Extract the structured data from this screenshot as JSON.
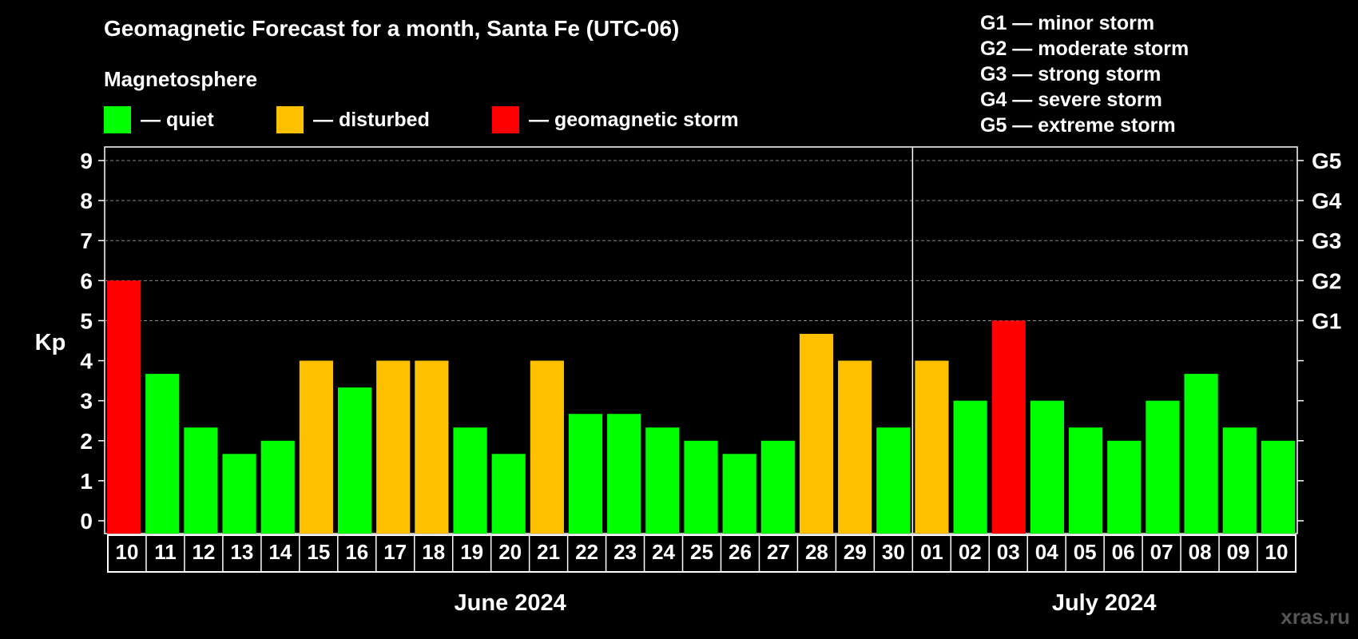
{
  "title": "Geomagnetic Forecast for a month, Santa Fe (UTC-06)",
  "subtitle": "Magnetosphere",
  "legend": [
    {
      "label": "— quiet",
      "color": "#00ff00"
    },
    {
      "label": "— disturbed",
      "color": "#ffc000"
    },
    {
      "label": "— geomagnetic storm",
      "color": "#ff0000"
    }
  ],
  "storm_legend": [
    "G1 — minor storm",
    "G2 — moderate storm",
    "G3 — strong storm",
    "G4 — severe storm",
    "G5 — extreme storm"
  ],
  "watermark": "xras.ru",
  "chart_data": {
    "type": "bar",
    "ylabel": "Kp",
    "ylim": [
      0,
      9
    ],
    "yticks": [
      "0",
      "1",
      "2",
      "3",
      "4",
      "5",
      "6",
      "7",
      "8",
      "9"
    ],
    "right_ticks": [
      {
        "kp": 5,
        "label": "G1"
      },
      {
        "kp": 6,
        "label": "G2"
      },
      {
        "kp": 7,
        "label": "G3"
      },
      {
        "kp": 8,
        "label": "G4"
      },
      {
        "kp": 9,
        "label": "G5"
      }
    ],
    "grid": "dashed horizontal lines at Kp 5–9",
    "months": [
      {
        "label": "June 2024",
        "first_index": 0,
        "last_index": 20
      },
      {
        "label": "July 2024",
        "first_index": 21,
        "last_index": 30
      }
    ],
    "categories": [
      "10",
      "11",
      "12",
      "13",
      "14",
      "15",
      "16",
      "17",
      "18",
      "19",
      "20",
      "21",
      "22",
      "23",
      "24",
      "25",
      "26",
      "27",
      "28",
      "29",
      "30",
      "01",
      "02",
      "03",
      "04",
      "05",
      "06",
      "07",
      "08",
      "09",
      "10"
    ],
    "values": [
      6,
      3.67,
      2.33,
      1.67,
      2,
      4,
      3.33,
      4,
      4,
      2.33,
      1.67,
      4,
      2.67,
      2.67,
      2.33,
      2,
      1.67,
      2,
      4.67,
      4,
      2.33,
      4,
      3,
      5,
      3,
      2.33,
      2,
      3,
      3.67,
      2.33,
      2
    ],
    "colors": [
      "#ff0000",
      "#00ff00",
      "#00ff00",
      "#00ff00",
      "#00ff00",
      "#ffc000",
      "#00ff00",
      "#ffc000",
      "#ffc000",
      "#00ff00",
      "#00ff00",
      "#ffc000",
      "#00ff00",
      "#00ff00",
      "#00ff00",
      "#00ff00",
      "#00ff00",
      "#00ff00",
      "#ffc000",
      "#ffc000",
      "#00ff00",
      "#ffc000",
      "#00ff00",
      "#ff0000",
      "#00ff00",
      "#00ff00",
      "#00ff00",
      "#00ff00",
      "#00ff00",
      "#00ff00",
      "#00ff00"
    ]
  }
}
